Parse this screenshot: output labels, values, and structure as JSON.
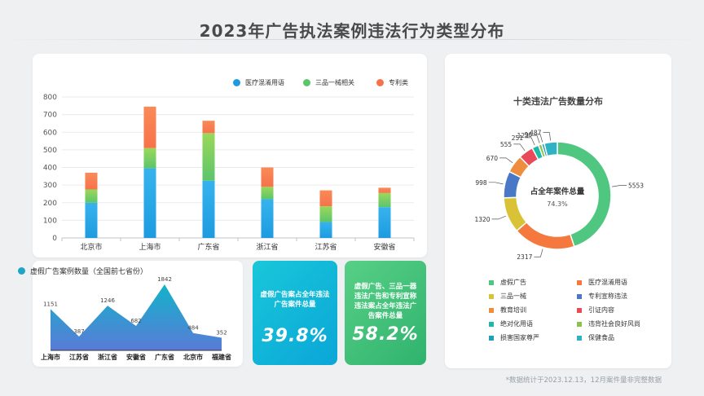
{
  "title": "2023年广告执法案例违法行为类型分布",
  "footnote": "*数据统计于2023.12.13，12月案件量非完整数据",
  "chart_data": [
    {
      "type": "bar",
      "stacked": true,
      "categories": [
        "北京市",
        "上海市",
        "广东省",
        "浙江省",
        "江苏省",
        "安徽省"
      ],
      "series": [
        {
          "name": "医疗混淆用语",
          "values": [
            200,
            395,
            325,
            220,
            90,
            175
          ],
          "color": "#1e9be0"
        },
        {
          "name": "三品一械相关",
          "values": [
            75,
            115,
            270,
            70,
            90,
            80
          ],
          "color": "#5cc56b"
        },
        {
          "name": "专利类",
          "values": [
            95,
            235,
            70,
            110,
            90,
            30
          ],
          "color": "#f6734a"
        }
      ],
      "ylim": [
        0,
        800
      ],
      "yticks": [
        0,
        100,
        200,
        300,
        400,
        500,
        600,
        700,
        800
      ],
      "legend": "top-right",
      "grid": true
    },
    {
      "type": "area",
      "title": "虚假广告案例数量（全国前七省份）",
      "categories": [
        "上海市",
        "江苏省",
        "浙江省",
        "安徽省",
        "广东省",
        "北京市",
        "福建省"
      ],
      "values": [
        1151,
        387,
        1246,
        682,
        1842,
        484,
        352
      ],
      "ylim": [
        0,
        2000
      ],
      "color": "#1ba6c6"
    },
    {
      "type": "pie",
      "donut": true,
      "title": "十类违法广告数量分布",
      "center_label": "占全年案件总量",
      "center_value": "74.3%",
      "slices": [
        {
          "label": "虚假广告",
          "value": 5553,
          "color": "#50c781"
        },
        {
          "label": "医疗混淆用语",
          "value": 2317,
          "color": "#f5793f"
        },
        {
          "label": "三品一械",
          "value": 1320,
          "color": "#d9c235"
        },
        {
          "label": "专利宣称违法",
          "value": 998,
          "color": "#4a78c6"
        },
        {
          "label": "教育培训",
          "value": 670,
          "color": "#ee8d3d"
        },
        {
          "label": "引证内容",
          "value": 555,
          "color": "#e94a5a"
        },
        {
          "label": "绝对化用语",
          "value": 251,
          "color": "#1db9a8"
        },
        {
          "label": "违背社会良好风尚",
          "value": 123,
          "color": "#8bc34a"
        },
        {
          "label": "损害国家尊严",
          "value": 96,
          "color": "#1fa0b8"
        },
        {
          "label": "保健食品",
          "value": 487,
          "color": "#2eb2c4"
        }
      ],
      "legend": "bottom"
    }
  ],
  "stats": [
    {
      "desc": "虚假广告案占全年违法广告案件总量",
      "value": "39.8%"
    },
    {
      "desc": "虚假广告、三品一器违法广告和专利宣称违法案占全年违法广告案件总量",
      "value": "58.2%"
    }
  ]
}
